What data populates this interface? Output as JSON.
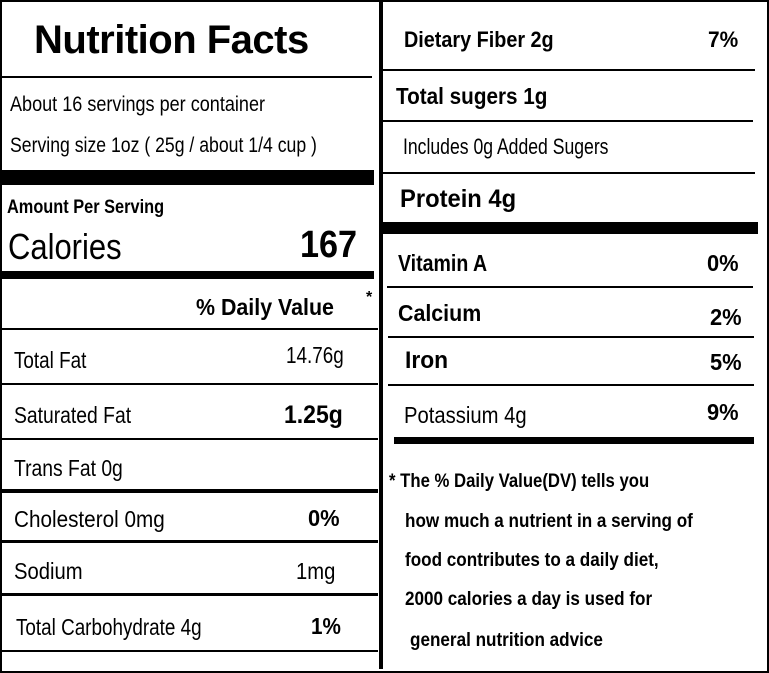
{
  "title": "Nutrition Facts",
  "servings": "About 16 servings per container",
  "serving_size": "Serving size 1oz ( 25g / about 1/4 cup )",
  "amount_per_serving": "Amount Per Serving",
  "calories_label": "Calories",
  "calories_value": "167",
  "daily_value_header": "% Daily Value",
  "asterisk": "*",
  "left_rows": [
    {
      "label": "Total Fat",
      "value": "14.76g"
    },
    {
      "label": "Saturated Fat",
      "value": "1.25g"
    },
    {
      "label": "Trans Fat 0g",
      "value": ""
    },
    {
      "label": "Cholesterol  0mg",
      "value": "0%"
    },
    {
      "label": "Sodium",
      "value": "1mg"
    },
    {
      "label": "Total Carbohydrate  4g",
      "value": "1%"
    }
  ],
  "right_rows": [
    {
      "label": "Dietary Fiber  2g",
      "value": "7%"
    },
    {
      "label": "Total sugers 1g",
      "value": ""
    },
    {
      "label": "Includes 0g Added Sugers",
      "value": ""
    },
    {
      "label": "Protein 4g",
      "value": ""
    }
  ],
  "vitamins": [
    {
      "label": "Vitamin A",
      "value": "0%"
    },
    {
      "label": "Calcium",
      "value": "2%"
    },
    {
      "label": "Iron",
      "value": "5%"
    },
    {
      "label": "Potassium 4g",
      "value": "9%"
    }
  ],
  "footnote": [
    "* The % Daily Value(DV)  tells you",
    "how much a nutrient in a serving of",
    "food contributes to a daily diet,",
    "2000 calories a day is used for",
    "general nutrition advice"
  ]
}
